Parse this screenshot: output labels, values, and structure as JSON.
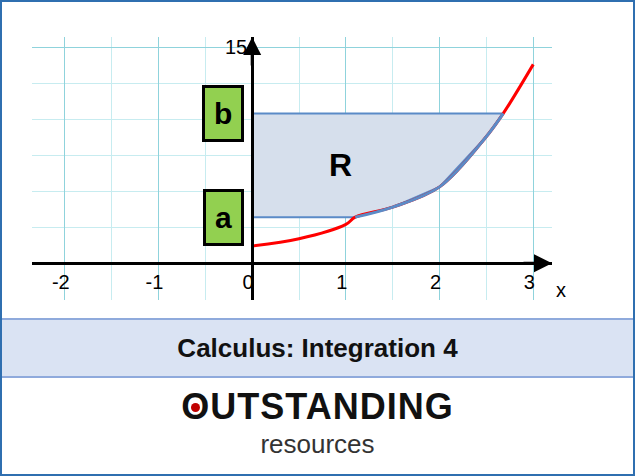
{
  "chart_data": {
    "type": "line",
    "series": [
      {
        "color": "#ff0000",
        "x": [
          0,
          0.5,
          1,
          1.1,
          1.5,
          2,
          2.5,
          2.68,
          3
        ],
        "values": [
          1.2,
          1.7,
          2.7,
          3.2,
          3.9,
          5.3,
          8.8,
          10.4,
          13.8
        ]
      }
    ],
    "xlim": [
      -2.35,
      3.2
    ],
    "ylim": [
      -2.55,
      15.7
    ],
    "xticks": [
      -2,
      -1,
      0,
      1,
      2,
      3
    ],
    "yticks": [
      15
    ],
    "grid": true,
    "xlabel": "x",
    "region": {
      "label": "R",
      "lower": 3.2,
      "upper": 10.4,
      "lower_label": "a",
      "upper_label": "b",
      "color": "#d6dfec",
      "edge_color": "#5b8bc7"
    }
  },
  "banner": {
    "title": "Calculus: Integration 4"
  },
  "logo": {
    "name": "OUTSTANDING",
    "tagline": "resources"
  }
}
